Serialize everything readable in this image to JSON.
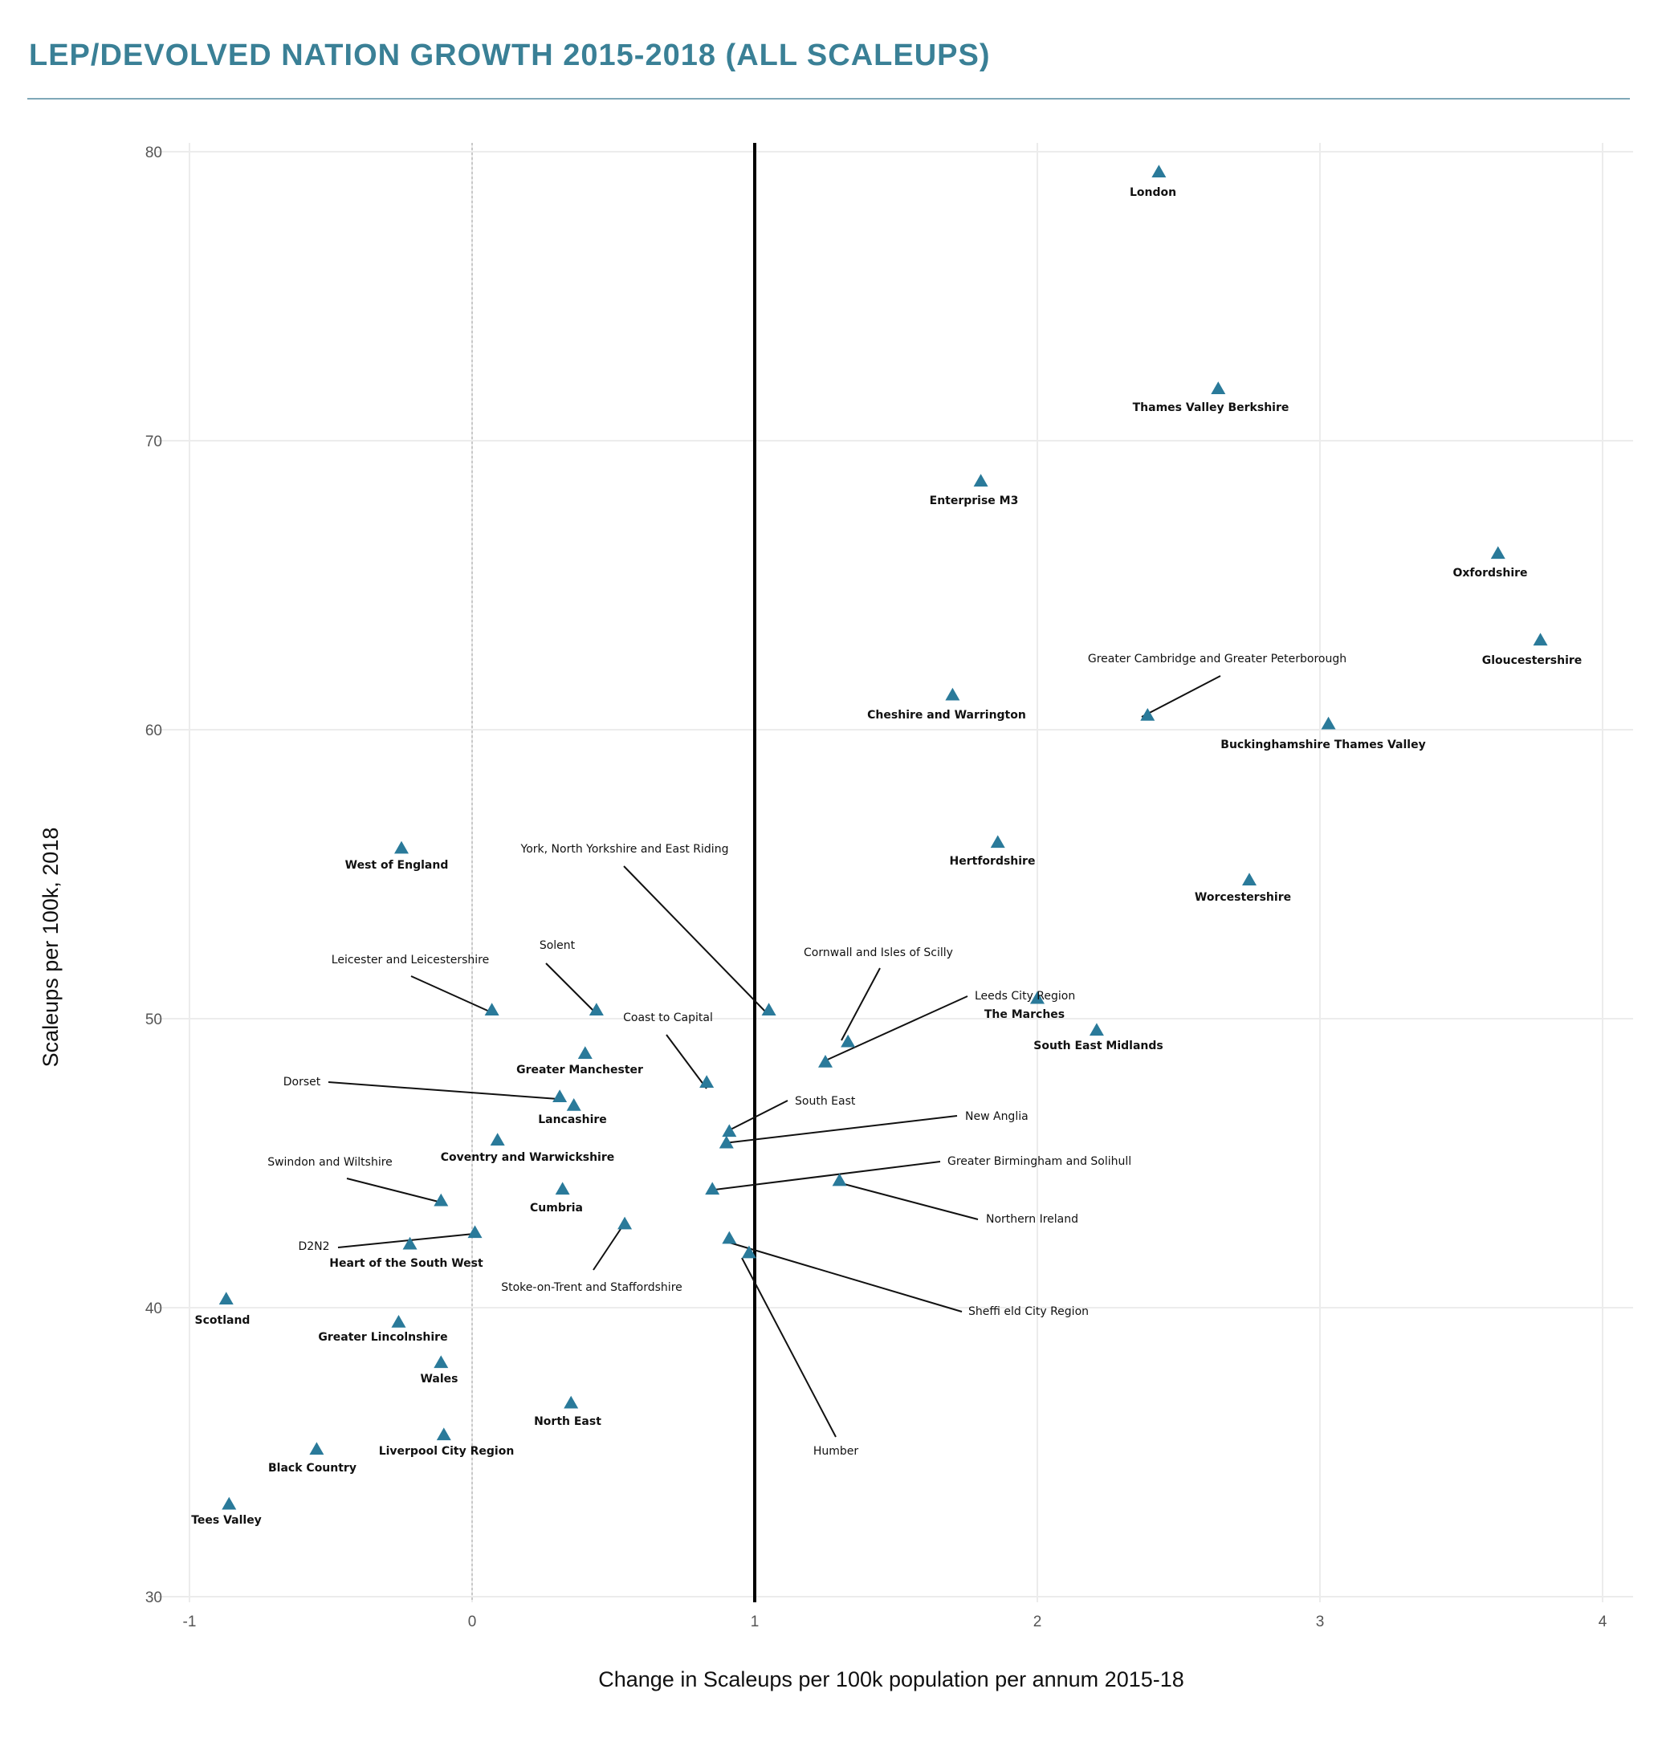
{
  "title": "LEP/DEVOLVED NATION GROWTH 2015-2018 (ALL SCALEUPS)",
  "colors": {
    "title": "#3a8096",
    "marker": "#2a7a9a",
    "reference_line": "#000000",
    "grid": "#ececec"
  },
  "chart_data": {
    "type": "scatter",
    "xlabel": "Change in Scaleups per 100k population per annum 2015-18",
    "ylabel": "Scaleups per 100k, 2018",
    "xlim": [
      -1.05,
      4.12
    ],
    "ylim": [
      29.7,
      80.5
    ],
    "xticks": [
      -1,
      0,
      1,
      2,
      3,
      4
    ],
    "yticks": [
      30,
      40,
      50,
      60,
      70,
      80
    ],
    "grid": true,
    "reference_lines": [
      {
        "axis": "x",
        "value": 0,
        "style": "dotted"
      },
      {
        "axis": "x",
        "value": 1,
        "style": "solid"
      }
    ],
    "points": [
      {
        "name": "London",
        "x": 2.43,
        "y": 79.3
      },
      {
        "name": "Thames Valley Berkshire",
        "x": 2.64,
        "y": 71.8
      },
      {
        "name": "Enterprise M3",
        "x": 1.8,
        "y": 68.6
      },
      {
        "name": "Oxfordshire",
        "x": 3.63,
        "y": 66.1
      },
      {
        "name": "Gloucestershire",
        "x": 3.78,
        "y": 63.1
      },
      {
        "name": "Cheshire and Warrington",
        "x": 1.7,
        "y": 61.2
      },
      {
        "name": "Greater Cambridge and Greater Peterborough",
        "x": 2.39,
        "y": 60.5
      },
      {
        "name": "Buckinghamshire Thames Valley",
        "x": 3.03,
        "y": 60.2
      },
      {
        "name": "West of England",
        "x": -0.25,
        "y": 55.9
      },
      {
        "name": "Hertfordshire",
        "x": 1.86,
        "y": 56.1
      },
      {
        "name": "Worcestershire",
        "x": 2.75,
        "y": 54.8
      },
      {
        "name": "Leeds City Region",
        "x": 1.25,
        "y": 48.5
      },
      {
        "name": "The Marches",
        "x": 2.0,
        "y": 50.7
      },
      {
        "name": "South East Midlands",
        "x": 2.21,
        "y": 49.6
      },
      {
        "name": "York, North Yorkshire and East Riding",
        "x": 1.05,
        "y": 50.3
      },
      {
        "name": "Leicester and Leicestershire",
        "x": 0.07,
        "y": 50.3
      },
      {
        "name": "Solent",
        "x": 0.44,
        "y": 50.3
      },
      {
        "name": "Cornwall and Isles of Scilly",
        "x": 1.33,
        "y": 49.2
      },
      {
        "name": "Greater Manchester",
        "x": 0.4,
        "y": 48.8
      },
      {
        "name": "Coast to Capital",
        "x": 0.83,
        "y": 47.8
      },
      {
        "name": "Dorset",
        "x": 0.31,
        "y": 47.3
      },
      {
        "name": "Lancashire",
        "x": 0.36,
        "y": 47.0
      },
      {
        "name": "South East",
        "x": 0.91,
        "y": 46.1
      },
      {
        "name": "New Anglia",
        "x": 0.9,
        "y": 45.7
      },
      {
        "name": "Coventry and Warwickshire",
        "x": 0.09,
        "y": 45.8
      },
      {
        "name": "Greater Birmingham and Solihull",
        "x": 0.85,
        "y": 44.1
      },
      {
        "name": "Northern Ireland",
        "x": 1.3,
        "y": 44.4
      },
      {
        "name": "Swindon and Wiltshire",
        "x": -0.11,
        "y": 43.7
      },
      {
        "name": "Cumbria",
        "x": 0.32,
        "y": 44.1
      },
      {
        "name": "Stoke-on-Trent and Staffordshire",
        "x": 0.54,
        "y": 42.9
      },
      {
        "name": "D2N2",
        "x": 0.01,
        "y": 42.6
      },
      {
        "name": "Heart of the South West",
        "x": -0.22,
        "y": 42.2
      },
      {
        "name": "Sheffield City Region",
        "x": 0.91,
        "y": 42.4
      },
      {
        "name": "Humber",
        "x": 0.98,
        "y": 41.9
      },
      {
        "name": "Scotland",
        "x": -0.87,
        "y": 40.3
      },
      {
        "name": "Greater Lincolnshire",
        "x": -0.26,
        "y": 39.5
      },
      {
        "name": "Wales",
        "x": -0.11,
        "y": 38.1
      },
      {
        "name": "North East",
        "x": 0.35,
        "y": 36.7
      },
      {
        "name": "Liverpool City Region",
        "x": -0.1,
        "y": 35.6
      },
      {
        "name": "Black Country",
        "x": -0.55,
        "y": 35.1
      },
      {
        "name": "Tees Valley",
        "x": -0.86,
        "y": 33.2
      }
    ],
    "labels": [
      {
        "text": "London",
        "style": "bold"
      },
      {
        "text": "Thames Valley Berkshire",
        "style": "bold"
      },
      {
        "text": "Enterprise M3",
        "style": "bold"
      },
      {
        "text": "Oxfordshire",
        "style": "bold"
      },
      {
        "text": "Gloucestershire",
        "style": "bold"
      },
      {
        "text": "Cheshire and Warrington",
        "style": "bold"
      },
      {
        "text": "Greater Cambridge and Greater Peterborough",
        "style": "plain"
      },
      {
        "text": "Buckinghamshire Thames Valley",
        "style": "bold"
      },
      {
        "text": "West of England",
        "style": "bold"
      },
      {
        "text": "Hertfordshire",
        "style": "bold"
      },
      {
        "text": "Worcestershire",
        "style": "bold"
      },
      {
        "text": "York, North Yorkshire and East Riding",
        "style": "plain"
      },
      {
        "text": "Cornwall and Isles of Scilly",
        "style": "plain"
      },
      {
        "text": "Leeds City Region",
        "style": "plain"
      },
      {
        "text": "The Marches",
        "style": "bold"
      },
      {
        "text": "South East Midlands",
        "style": "bold"
      },
      {
        "text": "Solent",
        "style": "plain"
      },
      {
        "text": "Leicester and Leicestershire",
        "style": "plain"
      },
      {
        "text": "Coast to Capital",
        "style": "plain"
      },
      {
        "text": "Greater Manchester",
        "style": "bold"
      },
      {
        "text": "Dorset",
        "style": "plain"
      },
      {
        "text": "South East",
        "style": "plain"
      },
      {
        "text": "Lancashire",
        "style": "bold"
      },
      {
        "text": "New Anglia",
        "style": "plain"
      },
      {
        "text": "Coventry and Warwickshire",
        "style": "bold"
      },
      {
        "text": "Swindon and Wiltshire",
        "style": "plain"
      },
      {
        "text": "Greater Birmingham and Solihull",
        "style": "plain"
      },
      {
        "text": "Cumbria",
        "style": "bold"
      },
      {
        "text": "Northern Ireland",
        "style": "plain"
      },
      {
        "text": "D2N2",
        "style": "plain"
      },
      {
        "text": "Heart of the South West",
        "style": "bold"
      },
      {
        "text": "Stoke-on-Trent and Staffordshire",
        "style": "plain"
      },
      {
        "text": "Sheffi eld City Region",
        "style": "plain"
      },
      {
        "text": "Scotland",
        "style": "bold"
      },
      {
        "text": "Greater Lincolnshire",
        "style": "bold"
      },
      {
        "text": "Wales",
        "style": "bold"
      },
      {
        "text": "North East",
        "style": "bold"
      },
      {
        "text": "Humber",
        "style": "plain"
      },
      {
        "text": "Black Country",
        "style": "bold"
      },
      {
        "text": "Liverpool City Region",
        "style": "bold"
      },
      {
        "text": "Tees Valley",
        "style": "bold"
      }
    ]
  }
}
